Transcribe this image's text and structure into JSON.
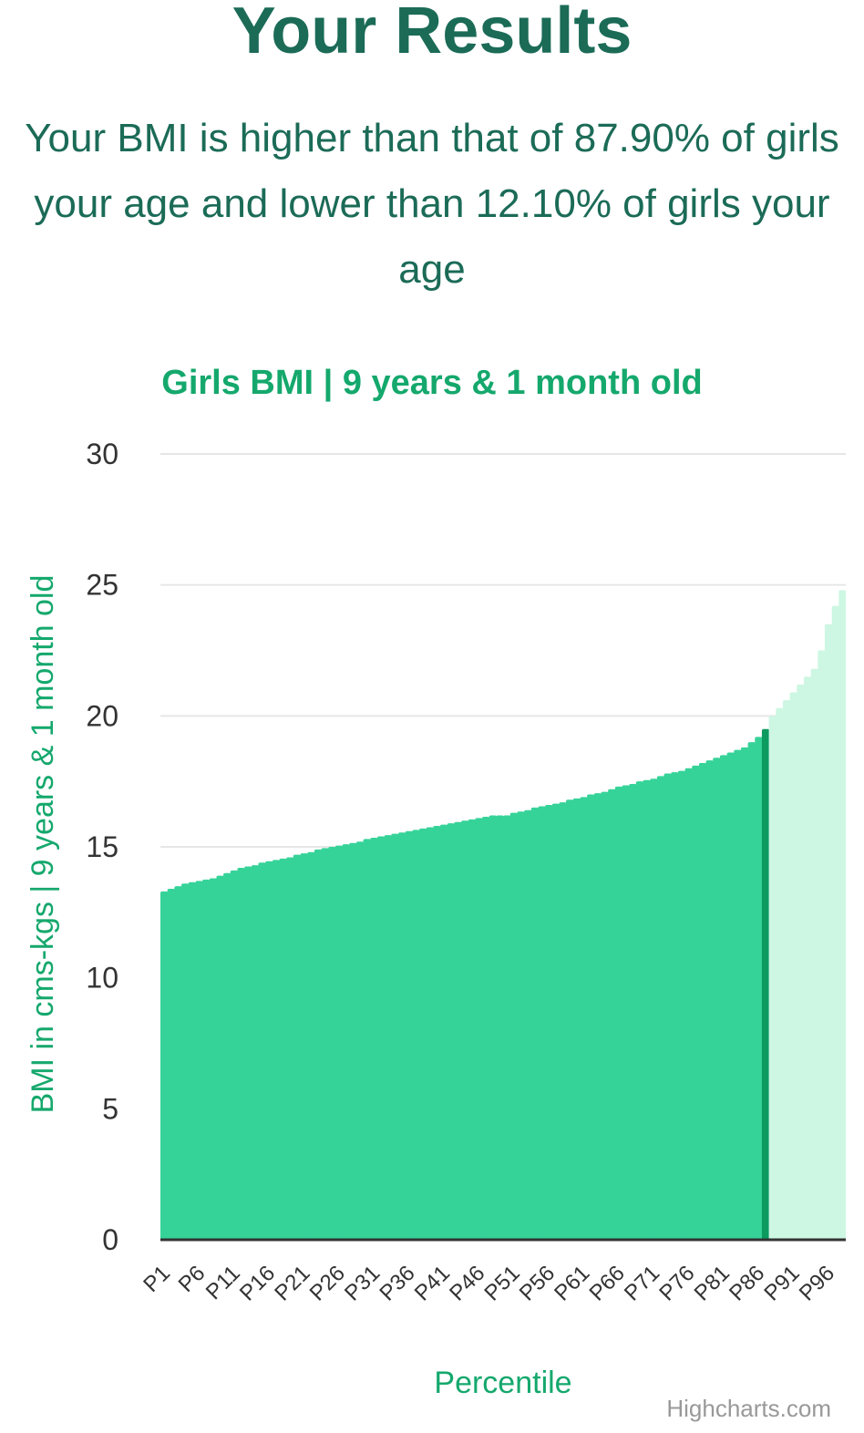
{
  "header": {
    "title": "Your Results",
    "summary": "Your BMI is higher than that of 87.90% of girls your age and lower than 12.10% of girls your age"
  },
  "chart_data": {
    "type": "bar",
    "title": "Girls BMI | 9 years & 1 month old",
    "xlabel": "Percentile",
    "ylabel": "BMI in cms-kgs | 9 years & 1 month old",
    "ylim": [
      0,
      30
    ],
    "yticks": [
      0,
      5,
      10,
      15,
      20,
      25,
      30
    ],
    "grid": true,
    "credits": "Highcharts.com",
    "highlight_index": 87,
    "colors": {
      "below": "#36d399",
      "above": "#cdf7e3",
      "highlight": "#0c9a5e",
      "grid": "#e6e6e6",
      "axis": "#333333"
    },
    "categories": [
      "P1",
      "P2",
      "P3",
      "P4",
      "P5",
      "P6",
      "P7",
      "P8",
      "P9",
      "P10",
      "P11",
      "P12",
      "P13",
      "P14",
      "P15",
      "P16",
      "P17",
      "P18",
      "P19",
      "P20",
      "P21",
      "P22",
      "P23",
      "P24",
      "P25",
      "P26",
      "P27",
      "P28",
      "P29",
      "P30",
      "P31",
      "P32",
      "P33",
      "P34",
      "P35",
      "P36",
      "P37",
      "P38",
      "P39",
      "P40",
      "P41",
      "P42",
      "P43",
      "P44",
      "P45",
      "P46",
      "P47",
      "P48",
      "P49",
      "P50",
      "P51",
      "P52",
      "P53",
      "P54",
      "P55",
      "P56",
      "P57",
      "P58",
      "P59",
      "P60",
      "P61",
      "P62",
      "P63",
      "P64",
      "P65",
      "P66",
      "P67",
      "P68",
      "P69",
      "P70",
      "P71",
      "P72",
      "P73",
      "P74",
      "P75",
      "P76",
      "P77",
      "P78",
      "P79",
      "P80",
      "P81",
      "P82",
      "P83",
      "P84",
      "P85",
      "P86",
      "P87",
      "P88",
      "P89",
      "P90",
      "P91",
      "P92",
      "P93",
      "P94",
      "P95",
      "P96",
      "P97",
      "P98",
      "P99"
    ],
    "tick_labels": [
      "P1",
      "P6",
      "P11",
      "P16",
      "P21",
      "P26",
      "P31",
      "P36",
      "P41",
      "P46",
      "P51",
      "P56",
      "P61",
      "P66",
      "P71",
      "P76",
      "P81",
      "P86",
      "P91",
      "P96"
    ],
    "values": [
      13.3,
      13.4,
      13.5,
      13.6,
      13.65,
      13.7,
      13.75,
      13.8,
      13.9,
      14.0,
      14.1,
      14.2,
      14.25,
      14.3,
      14.4,
      14.45,
      14.5,
      14.55,
      14.6,
      14.7,
      14.75,
      14.8,
      14.9,
      14.95,
      15.0,
      15.05,
      15.1,
      15.15,
      15.2,
      15.3,
      15.35,
      15.4,
      15.45,
      15.5,
      15.55,
      15.6,
      15.65,
      15.7,
      15.75,
      15.8,
      15.85,
      15.9,
      15.95,
      16.0,
      16.05,
      16.1,
      16.15,
      16.2,
      16.2,
      16.2,
      16.3,
      16.35,
      16.4,
      16.5,
      16.55,
      16.6,
      16.65,
      16.7,
      16.8,
      16.85,
      16.9,
      17.0,
      17.05,
      17.1,
      17.2,
      17.3,
      17.35,
      17.4,
      17.5,
      17.55,
      17.6,
      17.7,
      17.8,
      17.85,
      17.9,
      18.0,
      18.1,
      18.2,
      18.3,
      18.4,
      18.5,
      18.6,
      18.7,
      18.8,
      19.0,
      19.2,
      19.5,
      20.0,
      20.3,
      20.6,
      20.9,
      21.2,
      21.5,
      21.8,
      22.5,
      23.5,
      24.2,
      24.8,
      25.3
    ]
  }
}
